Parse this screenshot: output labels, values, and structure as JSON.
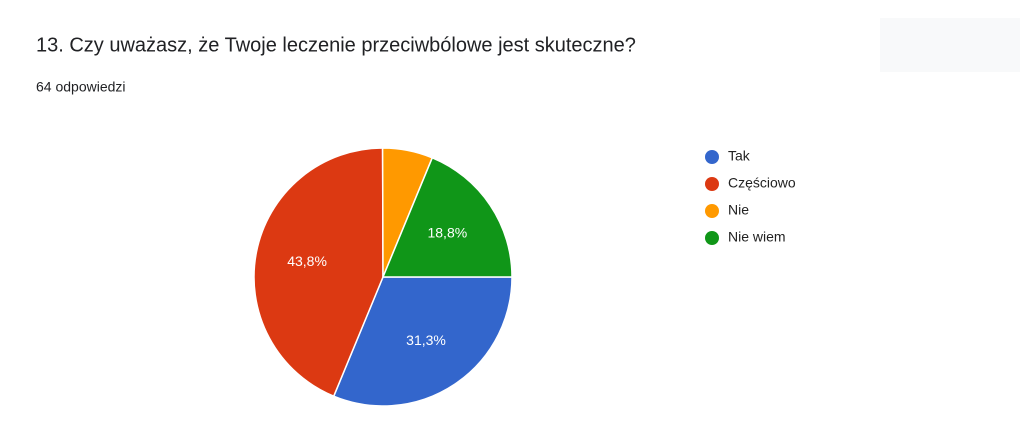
{
  "chart_data": {
    "type": "pie",
    "title": "13. Czy uważasz, że Twoje leczenie przeciwbólowe jest skuteczne?",
    "subtitle": "64 odpowiedzi",
    "categories": [
      "Tak",
      "Częściowo",
      "Nie",
      "Nie wiem"
    ],
    "values": [
      31.3,
      43.8,
      6.3,
      18.8
    ],
    "value_labels": [
      "31,3%",
      "43,8%",
      null,
      "18,8%"
    ],
    "colors": [
      "#3366cc",
      "#dc3912",
      "#ff9900",
      "#109618"
    ]
  }
}
